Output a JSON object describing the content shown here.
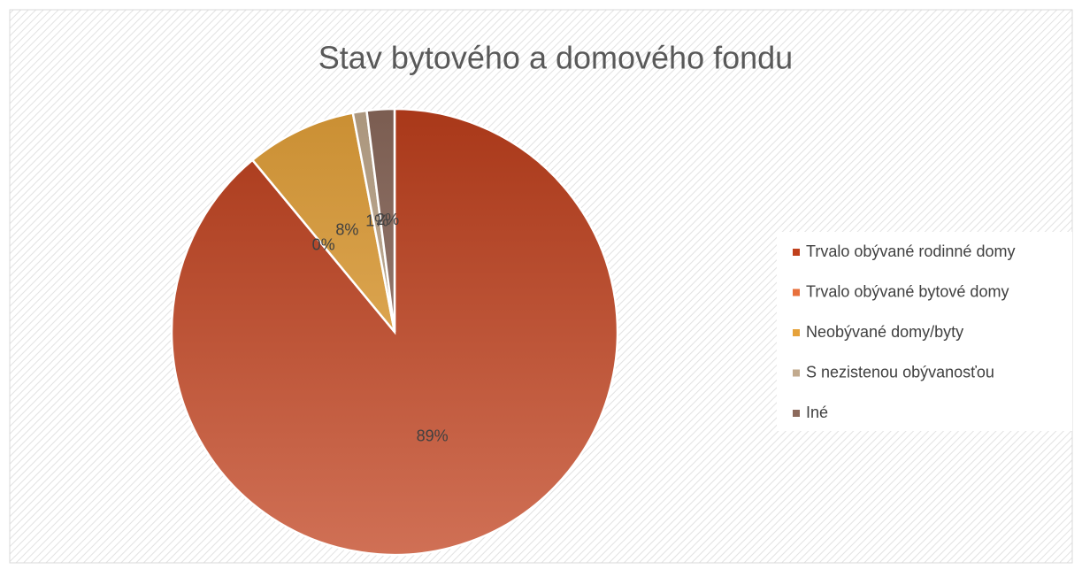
{
  "chart_data": {
    "type": "pie",
    "title": "Stav bytového a domového fondu",
    "categories": [
      "Trvalo obývané rodinné domy",
      "Trvalo obývané bytové domy",
      "Neobývané domy/byty",
      "S nezistenou obývanosťou",
      "Iné"
    ],
    "values": [
      89,
      0,
      8,
      1,
      2
    ],
    "value_labels": [
      "89%",
      "0%",
      "8%",
      "1%",
      "2%"
    ],
    "colors": [
      "#c0401c",
      "#e8703c",
      "#e6a23a",
      "#c2aa8e",
      "#8c6a5c"
    ],
    "legend": "right"
  }
}
